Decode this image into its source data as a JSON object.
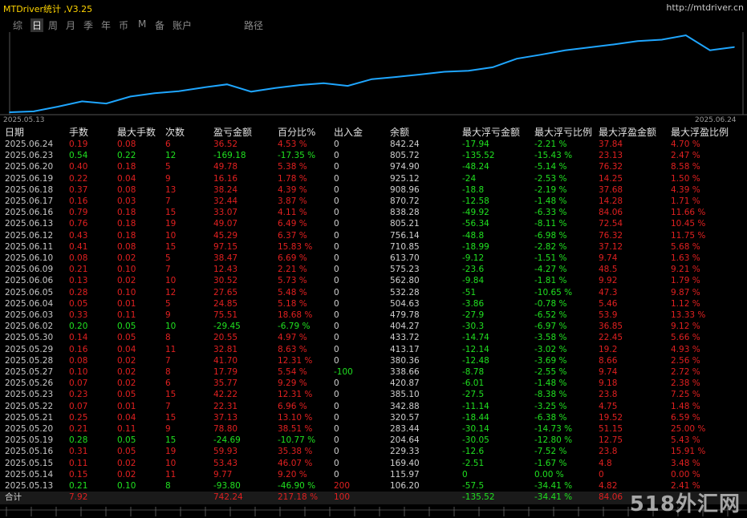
{
  "title": "MTDriver统计 ,V3.25",
  "url": "http://mtdriver.cn",
  "tabs": [
    "综",
    "日",
    "周",
    "月",
    "季",
    "年",
    "币",
    "M",
    "备",
    "账户",
    "路径"
  ],
  "active_tab": 1,
  "colors": {
    "line": "#1fa6ff",
    "positive": "#e02020",
    "negative": "#20e020",
    "title": "#ffd400"
  },
  "chart_data": {
    "type": "line",
    "x_start_label": "2025.05.13",
    "x_end_label": "2025.06.24",
    "x": [
      "2025.05.13",
      "2025.05.14",
      "2025.05.15",
      "2025.05.16",
      "2025.05.19",
      "2025.05.20",
      "2025.05.21",
      "2025.05.22",
      "2025.05.23",
      "2025.05.26",
      "2025.05.27",
      "2025.05.28",
      "2025.05.29",
      "2025.05.30",
      "2025.06.02",
      "2025.06.03",
      "2025.06.04",
      "2025.06.05",
      "2025.06.06",
      "2025.06.09",
      "2025.06.10",
      "2025.06.11",
      "2025.06.12",
      "2025.06.13",
      "2025.06.16",
      "2025.06.17",
      "2025.06.18",
      "2025.06.19",
      "2025.06.20",
      "2025.06.23",
      "2025.06.24"
    ],
    "series": [
      {
        "values": [
          106.2,
          115.97,
          169.4,
          229.33,
          204.64,
          283.44,
          320.57,
          342.88,
          385.1,
          420.87,
          338.66,
          380.36,
          413.17,
          433.72,
          404.27,
          479.78,
          504.63,
          532.28,
          562.8,
          575.23,
          613.7,
          710.85,
          756.14,
          805.21,
          838.28,
          870.72,
          908.96,
          925.12,
          974.9,
          805.72,
          842.24
        ]
      }
    ]
  },
  "table": {
    "headers": [
      "日期",
      "手数",
      "最大手数",
      "次数",
      "盈亏金额",
      "百分比%",
      "出入金",
      "余额",
      "最大浮亏金额",
      "最大浮亏比例",
      "最大浮盈金额",
      "最大浮盈比例"
    ],
    "rows": [
      [
        "2025.06.24",
        "0.19",
        "0.08",
        "6",
        "36.52",
        "4.53 %",
        "0",
        "842.24",
        "-17.94",
        "-2.21 %",
        "37.84",
        "4.70 %"
      ],
      [
        "2025.06.23",
        "0.54",
        "0.22",
        "12",
        "-169.18",
        "-17.35 %",
        "0",
        "805.72",
        "-135.52",
        "-15.43 %",
        "23.13",
        "2.47 %"
      ],
      [
        "2025.06.20",
        "0.40",
        "0.18",
        "5",
        "49.78",
        "5.38 %",
        "0",
        "974.90",
        "-48.24",
        "-5.14 %",
        "76.32",
        "8.58 %"
      ],
      [
        "2025.06.19",
        "0.22",
        "0.04",
        "9",
        "16.16",
        "1.78 %",
        "0",
        "925.12",
        "-24",
        "-2.53 %",
        "14.25",
        "1.50 %"
      ],
      [
        "2025.06.18",
        "0.37",
        "0.08",
        "13",
        "38.24",
        "4.39 %",
        "0",
        "908.96",
        "-18.8",
        "-2.19 %",
        "37.68",
        "4.39 %"
      ],
      [
        "2025.06.17",
        "0.16",
        "0.03",
        "7",
        "32.44",
        "3.87 %",
        "0",
        "870.72",
        "-12.58",
        "-1.48 %",
        "14.28",
        "1.71 %"
      ],
      [
        "2025.06.16",
        "0.79",
        "0.18",
        "15",
        "33.07",
        "4.11 %",
        "0",
        "838.28",
        "-49.92",
        "-6.33 %",
        "84.06",
        "11.66 %"
      ],
      [
        "2025.06.13",
        "0.76",
        "0.18",
        "19",
        "49.07",
        "6.49 %",
        "0",
        "805.21",
        "-56.34",
        "-8.11 %",
        "72.54",
        "10.45 %"
      ],
      [
        "2025.06.12",
        "0.43",
        "0.18",
        "10",
        "45.29",
        "6.37 %",
        "0",
        "756.14",
        "-48.8",
        "-6.98 %",
        "76.32",
        "11.75 %"
      ],
      [
        "2025.06.11",
        "0.41",
        "0.08",
        "15",
        "97.15",
        "15.83 %",
        "0",
        "710.85",
        "-18.99",
        "-2.82 %",
        "37.12",
        "5.68 %"
      ],
      [
        "2025.06.10",
        "0.08",
        "0.02",
        "5",
        "38.47",
        "6.69 %",
        "0",
        "613.70",
        "-9.12",
        "-1.51 %",
        "9.74",
        "1.63 %"
      ],
      [
        "2025.06.09",
        "0.21",
        "0.10",
        "7",
        "12.43",
        "2.21 %",
        "0",
        "575.23",
        "-23.6",
        "-4.27 %",
        "48.5",
        "9.21 %"
      ],
      [
        "2025.06.06",
        "0.13",
        "0.02",
        "10",
        "30.52",
        "5.73 %",
        "0",
        "562.80",
        "-9.84",
        "-1.81 %",
        "9.92",
        "1.79 %"
      ],
      [
        "2025.06.05",
        "0.28",
        "0.10",
        "12",
        "27.65",
        "5.48 %",
        "0",
        "532.28",
        "-51",
        "-10.65 %",
        "47.3",
        "9.87 %"
      ],
      [
        "2025.06.04",
        "0.05",
        "0.01",
        "5",
        "24.85",
        "5.18 %",
        "0",
        "504.63",
        "-3.86",
        "-0.78 %",
        "5.46",
        "1.12 %"
      ],
      [
        "2025.06.03",
        "0.33",
        "0.11",
        "9",
        "75.51",
        "18.68 %",
        "0",
        "479.78",
        "-27.9",
        "-6.52 %",
        "53.9",
        "13.33 %"
      ],
      [
        "2025.06.02",
        "0.20",
        "0.05",
        "10",
        "-29.45",
        "-6.79 %",
        "0",
        "404.27",
        "-30.3",
        "-6.97 %",
        "36.85",
        "9.12 %"
      ],
      [
        "2025.05.30",
        "0.14",
        "0.05",
        "8",
        "20.55",
        "4.97 %",
        "0",
        "433.72",
        "-14.74",
        "-3.58 %",
        "22.45",
        "5.66 %"
      ],
      [
        "2025.05.29",
        "0.16",
        "0.04",
        "11",
        "32.81",
        "8.63 %",
        "0",
        "413.17",
        "-12.14",
        "-3.02 %",
        "19.2",
        "4.93 %"
      ],
      [
        "2025.05.28",
        "0.08",
        "0.02",
        "7",
        "41.70",
        "12.31 %",
        "0",
        "380.36",
        "-12.48",
        "-3.69 %",
        "8.66",
        "2.56 %"
      ],
      [
        "2025.05.27",
        "0.10",
        "0.02",
        "8",
        "17.79",
        "5.54 %",
        "-100",
        "338.66",
        "-8.78",
        "-2.55 %",
        "9.74",
        "2.72 %"
      ],
      [
        "2025.05.26",
        "0.07",
        "0.02",
        "6",
        "35.77",
        "9.29 %",
        "0",
        "420.87",
        "-6.01",
        "-1.48 %",
        "9.18",
        "2.38 %"
      ],
      [
        "2025.05.23",
        "0.23",
        "0.05",
        "15",
        "42.22",
        "12.31 %",
        "0",
        "385.10",
        "-27.5",
        "-8.38 %",
        "23.8",
        "7.25 %"
      ],
      [
        "2025.05.22",
        "0.07",
        "0.01",
        "7",
        "22.31",
        "6.96 %",
        "0",
        "342.88",
        "-11.14",
        "-3.25 %",
        "4.75",
        "1.48 %"
      ],
      [
        "2025.05.21",
        "0.25",
        "0.04",
        "15",
        "37.13",
        "13.10 %",
        "0",
        "320.57",
        "-18.44",
        "-6.38 %",
        "19.52",
        "6.59 %"
      ],
      [
        "2025.05.20",
        "0.21",
        "0.11",
        "9",
        "78.80",
        "38.51 %",
        "0",
        "283.44",
        "-30.14",
        "-14.73 %",
        "51.15",
        "25.00 %"
      ],
      [
        "2025.05.19",
        "0.28",
        "0.05",
        "15",
        "-24.69",
        "-10.77 %",
        "0",
        "204.64",
        "-30.05",
        "-12.80 %",
        "12.75",
        "5.43 %"
      ],
      [
        "2025.05.16",
        "0.31",
        "0.05",
        "19",
        "59.93",
        "35.38 %",
        "0",
        "229.33",
        "-12.6",
        "-7.52 %",
        "23.8",
        "15.91 %"
      ],
      [
        "2025.05.15",
        "0.11",
        "0.02",
        "10",
        "53.43",
        "46.07 %",
        "0",
        "169.40",
        "-2.51",
        "-1.67 %",
        "4.8",
        "3.48 %"
      ],
      [
        "2025.05.14",
        "0.15",
        "0.02",
        "11",
        "9.77",
        "9.20 %",
        "0",
        "115.97",
        "0",
        "0.00 %",
        "0",
        "0.00 %"
      ],
      [
        "2025.05.13",
        "0.21",
        "0.10",
        "8",
        "-93.80",
        "-46.90 %",
        "200",
        "106.20",
        "-57.5",
        "-34.41 %",
        "4.82",
        "2.41 %"
      ]
    ],
    "total": [
      "合计",
      "7.92",
      "",
      "",
      "742.24",
      "217.18 %",
      "100",
      "",
      "-135.52",
      "-34.41 %",
      "84.06",
      ""
    ]
  },
  "watermark": "518外汇网"
}
